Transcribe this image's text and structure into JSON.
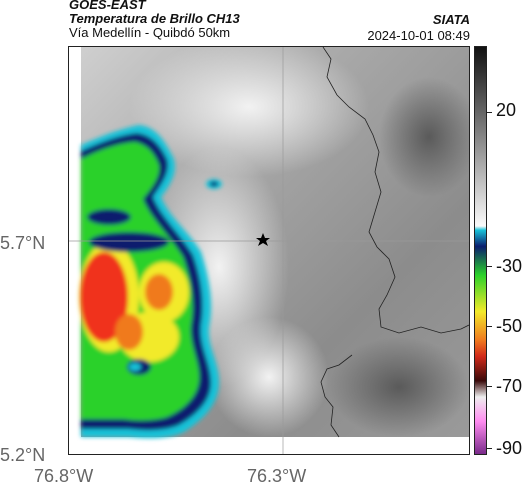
{
  "header": {
    "satellite": "GOES-EAST",
    "product": "Temperatura de Brillo CH13",
    "route": "Vía Medellín - Quibdó 50km",
    "source": "SIATA",
    "datetime": "2024-10-01 08:49"
  },
  "axes": {
    "lat_labels": [
      "5.7°N",
      "5.2°N"
    ],
    "lon_labels": [
      "76.8°W",
      "76.3°W"
    ]
  },
  "colorbar": {
    "labels": [
      "20",
      "-30",
      "-50",
      "-70",
      "-90"
    ]
  },
  "map": {
    "marker": "star-icon",
    "colors": {
      "gray_dark": "#6f6f6f",
      "gray_light": "#e3e3e3",
      "cyan": "#19c2d8",
      "navy": "#0a1d6e",
      "green": "#2ad12a",
      "yellow": "#f2ea2a",
      "red": "#f0331f"
    }
  }
}
